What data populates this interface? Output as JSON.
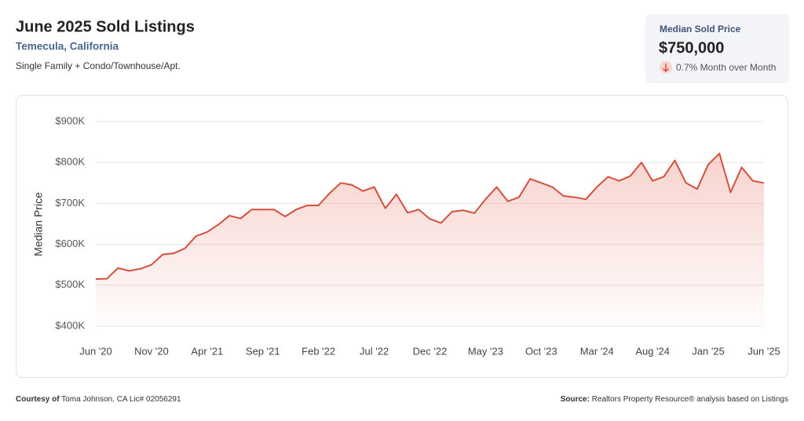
{
  "header": {
    "title": "June 2025 Sold Listings",
    "location": "Temecula, California",
    "property_types": "Single Family + Condo/Townhouse/Apt."
  },
  "kpi": {
    "label": "Median Sold Price",
    "value": "$750,000",
    "change": "0.7% Month over Month"
  },
  "footer": {
    "courtesy_label": "Courtesy of",
    "courtesy_text": "Toma Johnson, CA Lic# 02056291",
    "source_label": "Source:",
    "source_text": "Realtors Property Resource® analysis based on Listings"
  },
  "chart_data": {
    "type": "line",
    "y_label": "Median Price",
    "categories": [
      "Jun '20",
      null,
      null,
      null,
      null,
      "Nov '20",
      null,
      null,
      null,
      null,
      "Apr '21",
      null,
      null,
      null,
      null,
      "Sep '21",
      null,
      null,
      null,
      null,
      "Feb '22",
      null,
      null,
      null,
      null,
      "Jul '22",
      null,
      null,
      null,
      null,
      "Dec '22",
      null,
      null,
      null,
      null,
      "May '23",
      null,
      null,
      null,
      null,
      "Oct '23",
      null,
      null,
      null,
      null,
      "Mar '24",
      null,
      null,
      null,
      null,
      "Aug '24",
      null,
      null,
      null,
      null,
      "Jan '25",
      null,
      null,
      null,
      null,
      "Jun '25"
    ],
    "series": [
      {
        "color": "#d4503e",
        "values": [
          515000,
          516000,
          542000,
          535000,
          540000,
          550000,
          575000,
          578000,
          590000,
          620000,
          630000,
          648000,
          670000,
          663000,
          685000,
          685000,
          685000,
          668000,
          685000,
          695000,
          695000,
          725000,
          750000,
          745000,
          730000,
          740000,
          688000,
          722000,
          677000,
          685000,
          662000,
          652000,
          680000,
          683000,
          676000,
          710000,
          740000,
          705000,
          715000,
          760000,
          750000,
          740000,
          718000,
          715000,
          710000,
          740000,
          765000,
          755000,
          767000,
          800000,
          755000,
          765000,
          805000,
          750000,
          735000,
          795000,
          822000,
          727000,
          788000,
          755000,
          750000
        ]
      }
    ],
    "ylim": [
      400000,
      900000
    ],
    "yticks": [
      {
        "value": 400000,
        "label": "$400K"
      },
      {
        "value": 500000,
        "label": "$500K"
      },
      {
        "value": 600000,
        "label": "$600K"
      },
      {
        "value": 700000,
        "label": "$700K"
      },
      {
        "value": 800000,
        "label": "$800K"
      },
      {
        "value": 900000,
        "label": "$900K"
      }
    ],
    "grid": true
  }
}
